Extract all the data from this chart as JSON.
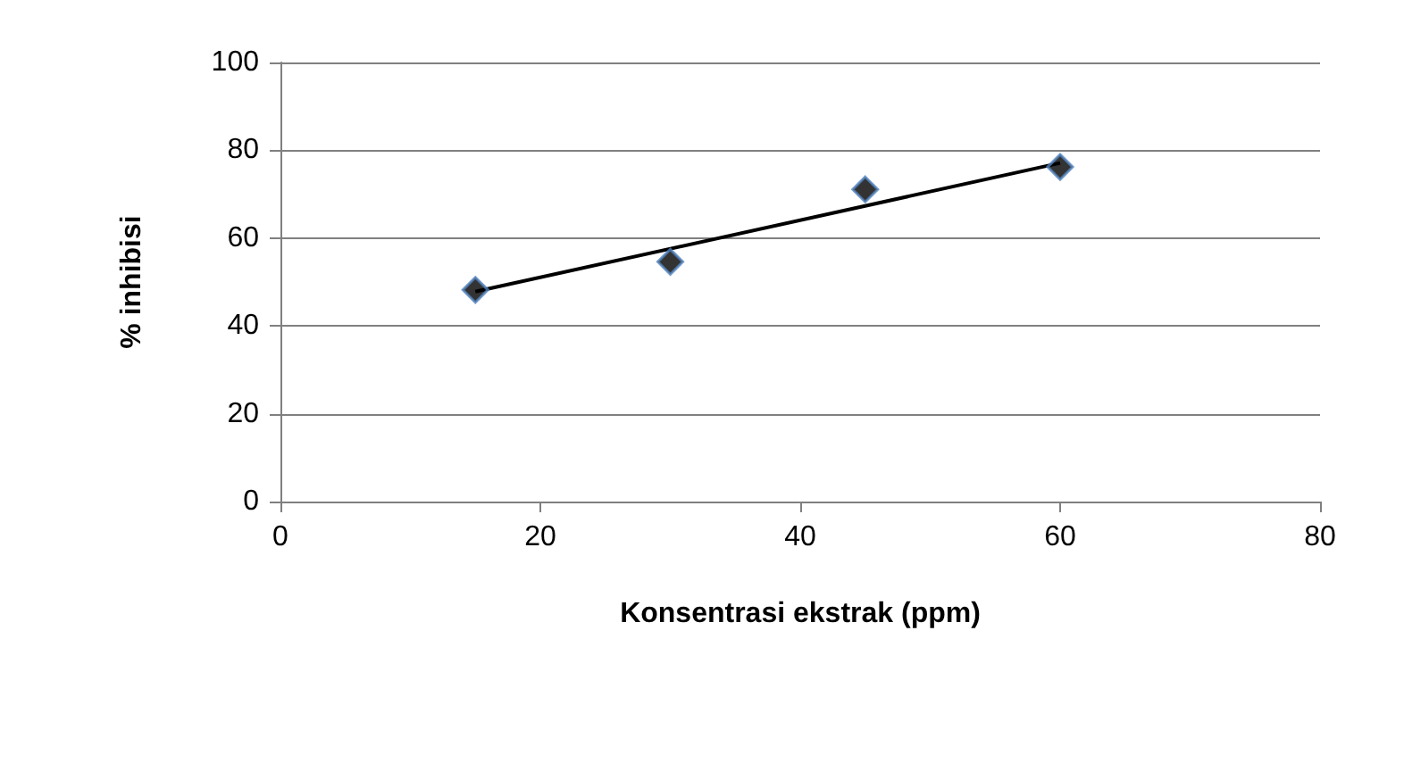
{
  "chart_data": {
    "type": "scatter",
    "xlabel": "Konsentrasi ekstrak (ppm)",
    "ylabel": "% inhibisi",
    "series": [
      {
        "color": "#000000",
        "marker": "diamond",
        "x": [
          15,
          30,
          45,
          60
        ],
        "values": [
          48.2,
          54.6,
          71.1,
          76.2
        ]
      },
      {
        "type": "line",
        "color": "#000000",
        "marker": "none",
        "x": [
          15,
          60
        ],
        "values": [
          47.8,
          77.1
        ]
      }
    ],
    "xlim": [
      0,
      80
    ],
    "xticks": [
      0,
      20,
      40,
      60,
      80
    ],
    "ylim": [
      0,
      100
    ],
    "yticks": [
      0,
      20,
      40,
      60,
      80,
      100
    ],
    "grid": "y"
  }
}
